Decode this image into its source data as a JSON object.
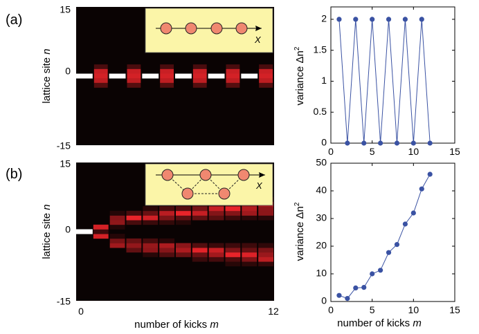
{
  "figure": {
    "panel_a_label": "(a)",
    "panel_b_label": "(b)",
    "shared_xlabel_prefix": "number of kicks ",
    "shared_xlabel_var": "m",
    "ylabel_heatmap_prefix": "lattice site ",
    "ylabel_heatmap_var": "n",
    "ylabel_variance_prefix": "variance  Δn",
    "ylabel_variance_sup": "2",
    "inset_axis_label": "X",
    "colors": {
      "background": "#0a0303",
      "red": "#e8242a",
      "yellow": "#ffe500",
      "inset_bg": "#fbf5a8",
      "atom": "#f08870",
      "series": "#3a52a3"
    }
  },
  "chart_data": [
    {
      "id": "a-heatmap",
      "type": "heatmap",
      "title": "",
      "xlabel": "",
      "ylabel": "lattice site n",
      "xlim": [
        0,
        12
      ],
      "ylim": [
        -15,
        15
      ],
      "x_ticks": [],
      "y_ticks": [
        "15",
        "0",
        "-15"
      ],
      "pattern": "alternating",
      "columns": 12
    },
    {
      "id": "a-variance",
      "type": "line",
      "title": "",
      "xlabel": "",
      "ylabel": "variance Δn²",
      "xlim": [
        0,
        15
      ],
      "ylim": [
        0,
        2.2
      ],
      "x_ticks": [
        "0",
        "5",
        "10",
        "15"
      ],
      "y_ticks": [
        "0",
        "0.5",
        "1",
        "1.5",
        "2"
      ],
      "x": [
        1,
        2,
        3,
        4,
        5,
        6,
        7,
        8,
        9,
        10,
        11,
        12
      ],
      "y": [
        2,
        0,
        2,
        0,
        2,
        0,
        2,
        0,
        2,
        0,
        2,
        0
      ]
    },
    {
      "id": "b-heatmap",
      "type": "heatmap",
      "title": "",
      "xlabel": "number of kicks m",
      "ylabel": "lattice site n",
      "xlim": [
        0,
        12
      ],
      "ylim": [
        -15,
        15
      ],
      "x_ticks": [
        "0",
        "12"
      ],
      "y_ticks": [
        "15",
        "0",
        "-15"
      ],
      "pattern": "spreading",
      "columns": 12
    },
    {
      "id": "b-variance",
      "type": "line",
      "title": "",
      "xlabel": "number of kicks m",
      "ylabel": "variance Δn²",
      "xlim": [
        0,
        15
      ],
      "ylim": [
        0,
        50
      ],
      "x_ticks": [
        "0",
        "5",
        "10",
        "15"
      ],
      "y_ticks": [
        "0",
        "10",
        "20",
        "30",
        "40",
        "50"
      ],
      "x": [
        1,
        2,
        3,
        4,
        5,
        6,
        7,
        8,
        9,
        10,
        11,
        12
      ],
      "y": [
        2.2,
        1.1,
        4.9,
        5.1,
        10.0,
        11.3,
        17.7,
        20.6,
        28.0,
        32.0,
        40.7,
        46.0
      ]
    }
  ]
}
